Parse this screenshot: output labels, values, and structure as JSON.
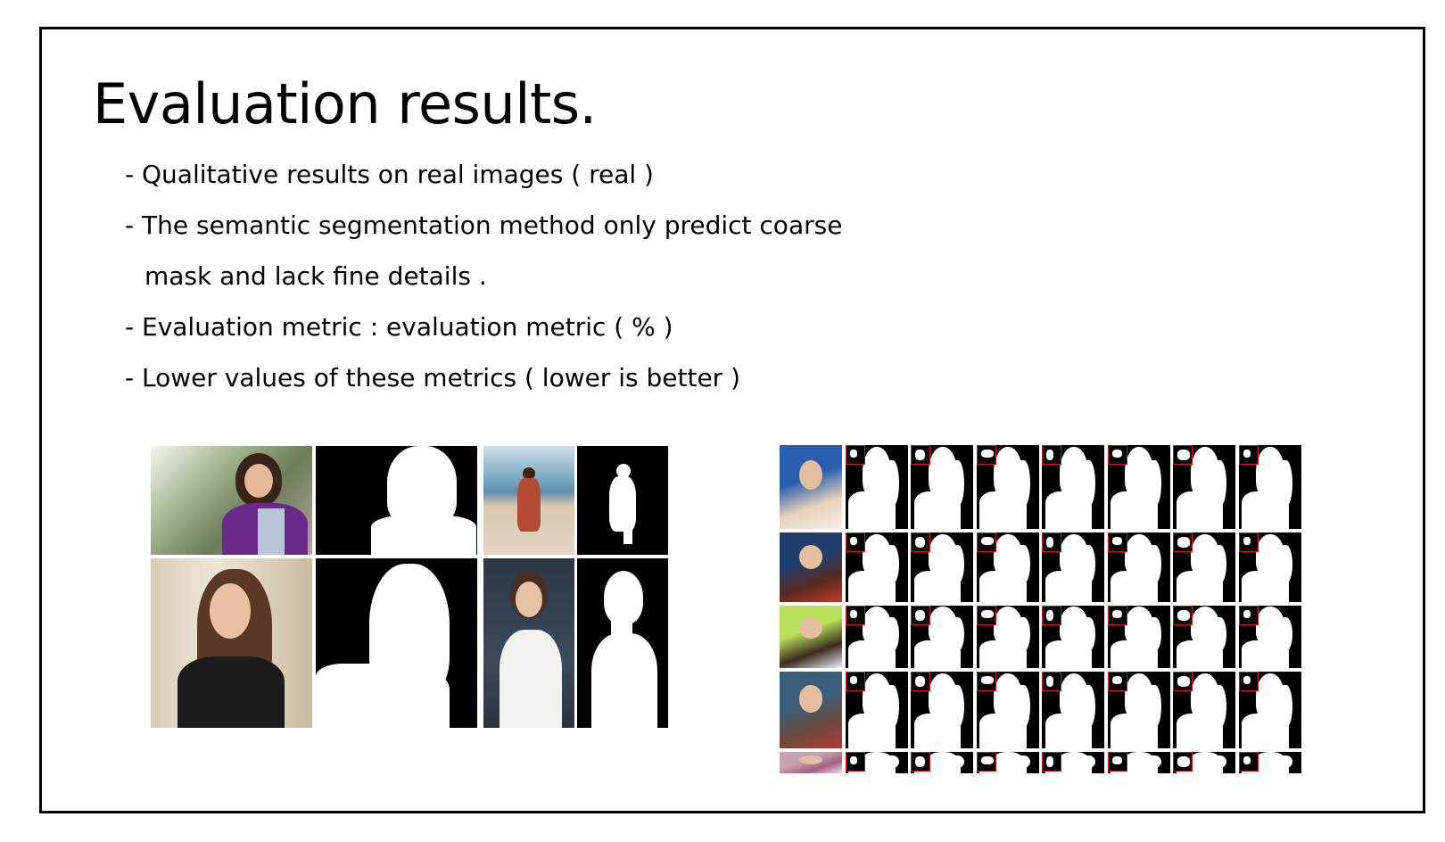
{
  "slide": {
    "title": "Evaluation results.",
    "bullets": [
      "- Qualitative results on real images ( real )",
      "- The semantic segmentation method only predict coarse",
      "mask and lack fine details .",
      "- Evaluation metric : evaluation metric ( % )",
      "- Lower values of these metrics ( lower is better )"
    ]
  }
}
